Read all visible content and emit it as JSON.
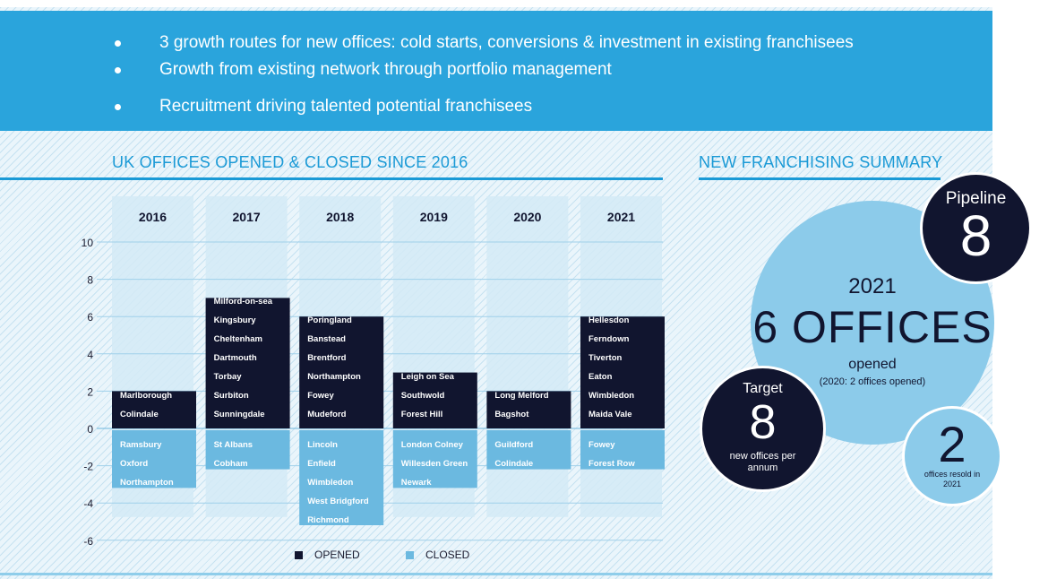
{
  "banner": {
    "bullets": [
      "3 growth routes for new offices: cold starts, conversions & investment in existing franchisees",
      "Growth from existing network through portfolio management",
      "Recruitment driving talented potential franchisees"
    ]
  },
  "colors": {
    "banner": "#2aa4dc",
    "opened": "#11152f",
    "closed": "#6bb9e0",
    "column_bg": "#d3eaf6",
    "title": "#1b9ad6",
    "circle_light": "#8ccbea",
    "circle_dark": "#11152f"
  },
  "chart_data": {
    "type": "bar",
    "title": "UK OFFICES OPENED & CLOSED SINCE 2016",
    "categories": [
      "2016",
      "2017",
      "2018",
      "2019",
      "2020",
      "2021"
    ],
    "ylim": [
      -6,
      10
    ],
    "yticks": [
      -6,
      -4,
      -2,
      0,
      2,
      4,
      6,
      8,
      10
    ],
    "grid": true,
    "legend_position": "bottom-center",
    "series": [
      {
        "name": "OPENED",
        "values": [
          2,
          7,
          6,
          3,
          2,
          6
        ],
        "offices": [
          [
            "Marlborough",
            "Colindale"
          ],
          [
            "Milford-on-sea",
            "Kingsbury",
            "Cheltenham",
            "Dartmouth",
            "Torbay",
            "Surbiton",
            "Sunningdale"
          ],
          [
            "Poringland",
            "Banstead",
            "Brentford",
            "Northampton",
            "Fowey",
            "Mudeford"
          ],
          [
            "Leigh on Sea",
            "Southwold",
            "Forest Hill"
          ],
          [
            "Long Melford",
            "Bagshot"
          ],
          [
            "Hellesdon",
            "Ferndown",
            "Tiverton",
            "Eaton",
            "Wimbledon",
            "Maida Vale"
          ]
        ]
      },
      {
        "name": "CLOSED",
        "values": [
          -3,
          -2,
          -5,
          -3,
          -2,
          -2
        ],
        "offices": [
          [
            "Ramsbury",
            "Oxford",
            "Northampton"
          ],
          [
            "St Albans",
            "Cobham"
          ],
          [
            "Lincoln",
            "Enfield",
            "Wimbledon",
            "West Bridgford",
            "Richmond"
          ],
          [
            "London Colney",
            "Willesden Green",
            "Newark"
          ],
          [
            "Guildford",
            "Colindale"
          ],
          [
            "Fowey",
            "Forest Row"
          ]
        ]
      }
    ]
  },
  "summary": {
    "title": "NEW FRANCHISING SUMMARY",
    "pipeline": {
      "label": "Pipeline",
      "value": "8"
    },
    "main": {
      "year": "2021",
      "headline": "6 OFFICES",
      "sub": "opened",
      "note": "(2020: 2 offices opened)"
    },
    "target": {
      "label": "Target",
      "value": "8",
      "desc": "new offices per annum"
    },
    "resold": {
      "value": "2",
      "desc": "offices resold in 2021"
    }
  }
}
